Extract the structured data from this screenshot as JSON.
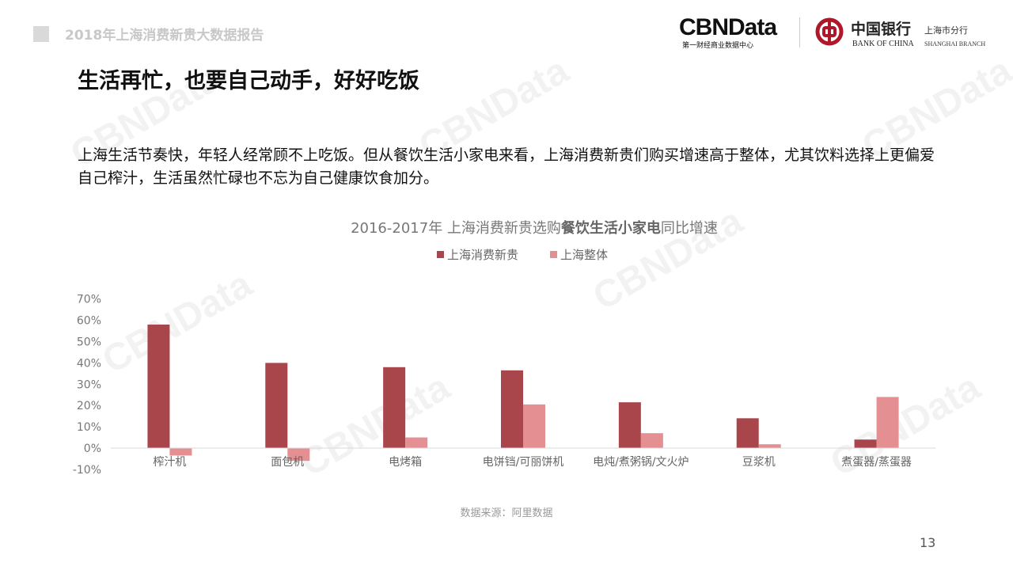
{
  "header": {
    "report_title": "2018年上海消费新贵大数据报告",
    "cbn_logo": "CBNData",
    "cbn_sub": "第一财经商业数据中心",
    "boc_name": "中国银行",
    "boc_en": "BANK OF CHINA",
    "boc_branch": "上海市分行",
    "boc_branch_en": "SHANGHAI BRANCH"
  },
  "title": "生活再忙，也要自己动手，好好吃饭",
  "description": "上海生活节奏快，年轻人经常顾不上吃饭。但从餐饮生活小家电来看，上海消费新贵们购买增速高于整体，尤其饮料选择上更偏爱自己榨汁，生活虽然忙碌也不忘为自己健康饮食加分。",
  "chart_data": {
    "type": "bar",
    "title_prefix": "2016-2017年 上海消费新贵选购",
    "title_bold": "餐饮生活小家电",
    "title_suffix": "同比增速",
    "categories": [
      "榨汁机",
      "面包机",
      "电烤箱",
      "电饼铛/可丽饼机",
      "电炖/煮粥锅/文火炉",
      "豆浆机",
      "煮蛋器/蒸蛋器"
    ],
    "series": [
      {
        "name": "上海消费新贵",
        "color": "#a8464c",
        "values": [
          58,
          40,
          38,
          36.5,
          21.5,
          14,
          4
        ]
      },
      {
        "name": "上海整体",
        "color": "#e49093",
        "values": [
          -3.5,
          -6,
          5,
          20.5,
          7,
          1.8,
          24
        ]
      }
    ],
    "ylim": [
      -10,
      70
    ],
    "yticks": [
      "-10%",
      "0%",
      "10%",
      "20%",
      "30%",
      "40%",
      "50%",
      "60%",
      "70%"
    ],
    "grid": false,
    "legend": "top"
  },
  "source": "数据来源：阿里数据",
  "page_number": "13",
  "watermark": "CBNData"
}
